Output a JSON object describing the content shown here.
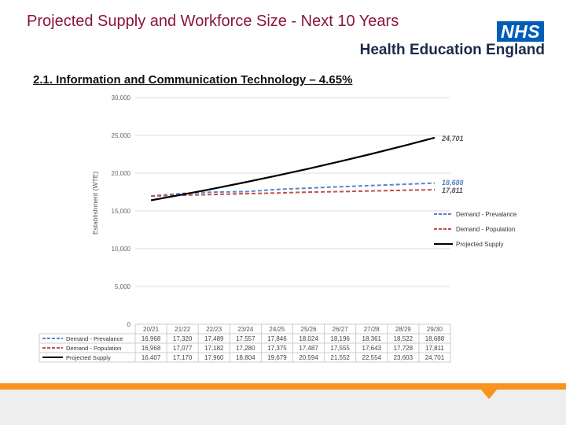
{
  "header": {
    "title": "Projected Supply and Workforce Size - Next 10 Years",
    "logo_badge": "NHS",
    "org_name": "Health Education England"
  },
  "section": {
    "subtitle": "2.1. Information and Communication Technology – 4.65%"
  },
  "colors": {
    "title": "#8a1538",
    "nhs_blue": "#005eb8",
    "prevalence": "#5b86c5",
    "population": "#c0504d",
    "supply": "#000000",
    "footer_orange": "#f7941d"
  },
  "chart_data": {
    "type": "line",
    "categories": [
      "20/21",
      "21/22",
      "22/23",
      "23/24",
      "24/25",
      "25/26",
      "26/27",
      "27/28",
      "28/29",
      "29/30"
    ],
    "ylabel": "Establishment (WTE)",
    "ylim": [
      0,
      30000
    ],
    "yticks": [
      "30,000",
      "25,000",
      "20,000",
      "15,000",
      "10,000",
      "5,000",
      "0"
    ],
    "yticks_values": [
      30000,
      25000,
      20000,
      15000,
      10000,
      5000,
      0
    ],
    "grid": true,
    "legend_position": "right",
    "series": [
      {
        "name": "Demand - Prevalance",
        "style": "dashed",
        "values": [
          16968,
          17320,
          17489,
          17557,
          17846,
          18024,
          18196,
          18361,
          18522,
          18688
        ],
        "table_values": [
          "16,968",
          "17,320",
          "17,489",
          "17,557",
          "17,846",
          "18,024",
          "18,196",
          "18,361",
          "18,522",
          "18,688"
        ],
        "end_label": "18,688"
      },
      {
        "name": "Demand - Population",
        "style": "dashed",
        "values": [
          16968,
          17077,
          17182,
          17280,
          17375,
          17487,
          17555,
          17643,
          17728,
          17811
        ],
        "table_values": [
          "16,968",
          "17,077",
          "17,182",
          "17,280",
          "17,375",
          "17,487",
          "17,555",
          "17,643",
          "17,728",
          "17,811"
        ],
        "end_label": "17,811"
      },
      {
        "name": "Projected Supply",
        "style": "solid",
        "values": [
          16407,
          17170,
          17960,
          18804,
          19679,
          20594,
          21552,
          22554,
          23603,
          24701
        ],
        "table_values": [
          "16,407",
          "17,170",
          "17,960",
          "18,804",
          "19,679",
          "20,594",
          "21,552",
          "22,554",
          "23,603",
          "24,701"
        ],
        "end_label": "24,701"
      }
    ]
  }
}
